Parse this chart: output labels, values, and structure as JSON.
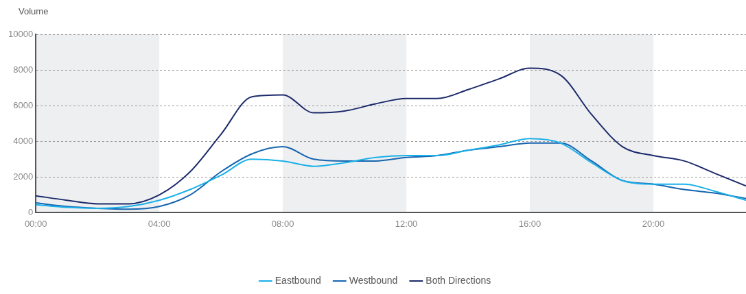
{
  "chart_data": {
    "type": "line",
    "ylabel": "Volume",
    "x": [
      0,
      1,
      2,
      3,
      4,
      5,
      6,
      7,
      8,
      9,
      10,
      11,
      12,
      13,
      14,
      15,
      16,
      17,
      18,
      19,
      20,
      21,
      22,
      23
    ],
    "xlim": [
      0,
      23
    ],
    "xticks": [
      {
        "value": 0,
        "label": "00:00"
      },
      {
        "value": 4,
        "label": "04:00"
      },
      {
        "value": 8,
        "label": "08:00"
      },
      {
        "value": 12,
        "label": "12:00"
      },
      {
        "value": 16,
        "label": "16:00"
      },
      {
        "value": 20,
        "label": "20:00"
      }
    ],
    "ylim": [
      0,
      10000
    ],
    "yticks": [
      0,
      2000,
      4000,
      6000,
      8000,
      10000
    ],
    "grid": "y",
    "legend": "bottom",
    "marker": "none",
    "line_style": "solid",
    "bands": [
      {
        "axis": "x",
        "from": 0,
        "to": 4,
        "color": "#eeeff1"
      },
      {
        "axis": "x",
        "from": 8,
        "to": 12,
        "color": "#eeeff1"
      },
      {
        "axis": "x",
        "from": 16,
        "to": 20,
        "color": "#eeeff1"
      }
    ],
    "series": [
      {
        "name": "Eastbound",
        "color": "#1ab0e8",
        "values": [
          450,
          300,
          250,
          350,
          700,
          1300,
          2100,
          3000,
          2900,
          2600,
          2800,
          3100,
          3200,
          3200,
          3500,
          3800,
          4150,
          3900,
          2800,
          1800,
          1600,
          1600,
          1200,
          700
        ]
      },
      {
        "name": "Westbound",
        "color": "#1565b0",
        "values": [
          550,
          350,
          250,
          200,
          350,
          1000,
          2300,
          3300,
          3700,
          3000,
          2900,
          2900,
          3100,
          3200,
          3500,
          3700,
          3900,
          3900,
          2900,
          1800,
          1600,
          1300,
          1100,
          800
        ]
      },
      {
        "name": "Both Directions",
        "color": "#1c2a6b",
        "values": [
          950,
          700,
          500,
          500,
          1000,
          2300,
          4400,
          6500,
          6600,
          5600,
          5700,
          6100,
          6400,
          6400,
          6900,
          7500,
          8100,
          7700,
          5500,
          3700,
          3200,
          2900,
          2200,
          1500
        ]
      }
    ]
  }
}
